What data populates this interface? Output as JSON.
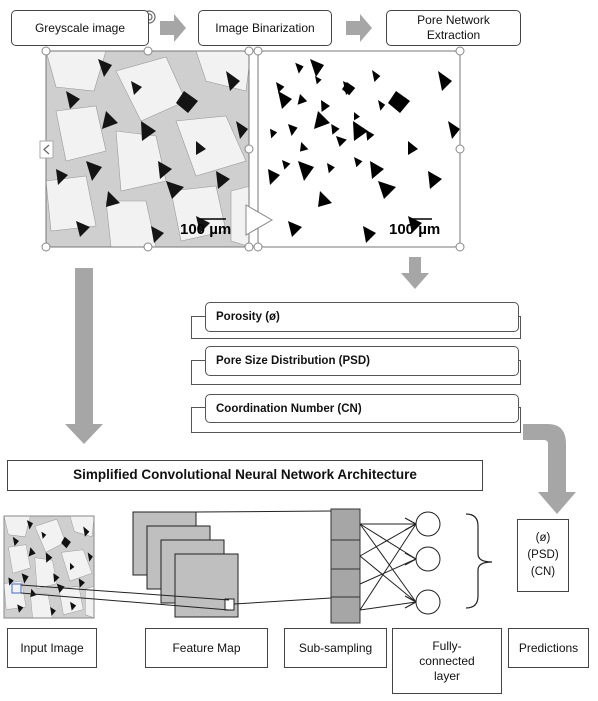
{
  "pipeline": {
    "greyscale": "Greyscale image",
    "binarization": "Image Binarization",
    "pore_network": "Pore Network Extraction"
  },
  "images": {
    "scale_left": "100 µm",
    "scale_right": "100 µm"
  },
  "properties": {
    "porosity": "Porosity (ø)",
    "psd": "Pore Size Distribution (PSD)",
    "cn": "Coordination Number (CN)"
  },
  "cnn": {
    "title": "Simplified Convolutional Neural Network Architecture",
    "input_image": "Input Image",
    "feature_map": "Feature Map",
    "sub_sampling": "Sub-sampling",
    "fully_connected": "Fully-connected layer",
    "predictions_label": "Predictions"
  },
  "predictions": {
    "line1": "(ø)",
    "line2": "(PSD)",
    "line3": "(CN)"
  },
  "colors": {
    "arrow_grey": "#a6a6a6",
    "feature_fill": "#bfbfbf",
    "subsample_fill": "#a6a6a6"
  }
}
